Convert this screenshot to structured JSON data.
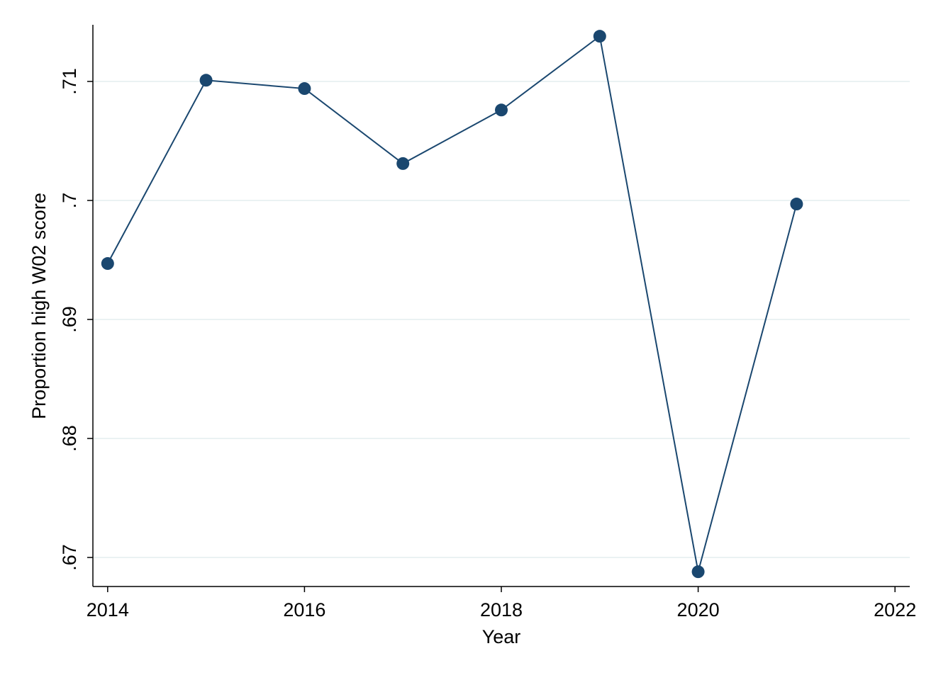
{
  "chart_data": {
    "type": "line",
    "x_label": "Year",
    "y_label": "Proportion high W02 score",
    "x": [
      2014,
      2015,
      2016,
      2017,
      2018,
      2019,
      2020,
      2021
    ],
    "values": [
      0.6947,
      0.7101,
      0.7094,
      0.7031,
      0.7076,
      0.7138,
      0.6688,
      0.6997
    ],
    "color": "#1a476f",
    "xlim": [
      2013.85,
      2022.15
    ],
    "xticks": [
      2014,
      2016,
      2018,
      2020,
      2022
    ],
    "ylim": [
      0.66756,
      0.71476
    ],
    "yticks": [
      {
        "value": 0.67,
        "label": ".67"
      },
      {
        "value": 0.68,
        "label": ".68"
      },
      {
        "value": 0.69,
        "label": ".69"
      },
      {
        "value": 0.7,
        "label": ".7"
      },
      {
        "value": 0.71,
        "label": ".71"
      }
    ],
    "grid": true
  }
}
